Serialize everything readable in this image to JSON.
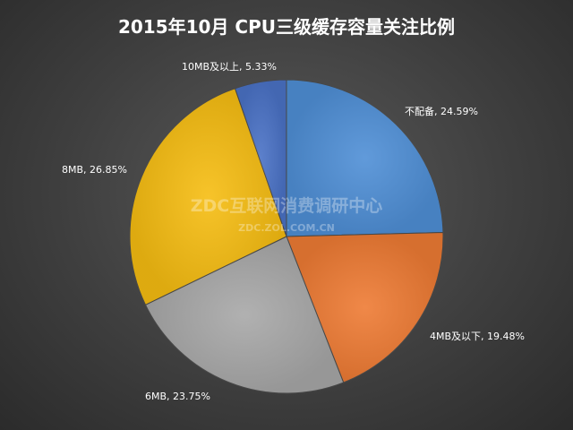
{
  "chart_data": {
    "type": "pie",
    "title": "2015年10月  CPU三级缓存容量关注比例",
    "slices": [
      {
        "name": "不配备",
        "value": 24.59,
        "label": "不配备, 24.59%",
        "color": "#4f8fd6"
      },
      {
        "name": "4MB及以下",
        "value": 19.48,
        "label": "4MB及以下, 19.48%",
        "color": "#ee7b34"
      },
      {
        "name": "6MB",
        "value": 23.75,
        "label": "6MB, 23.75%",
        "color": "#a8a8a8"
      },
      {
        "name": "8MB",
        "value": 26.85,
        "label": "8MB, 26.85%",
        "color": "#f6bd12"
      },
      {
        "name": "10MB及以上",
        "value": 5.33,
        "label": "10MB及以上, 5.33%",
        "color": "#4a72c6"
      }
    ],
    "legend": "none"
  },
  "watermark": {
    "line1": "ZDC互联网消费调研中心",
    "line2": "ZDC.ZOL.COM.CN"
  }
}
